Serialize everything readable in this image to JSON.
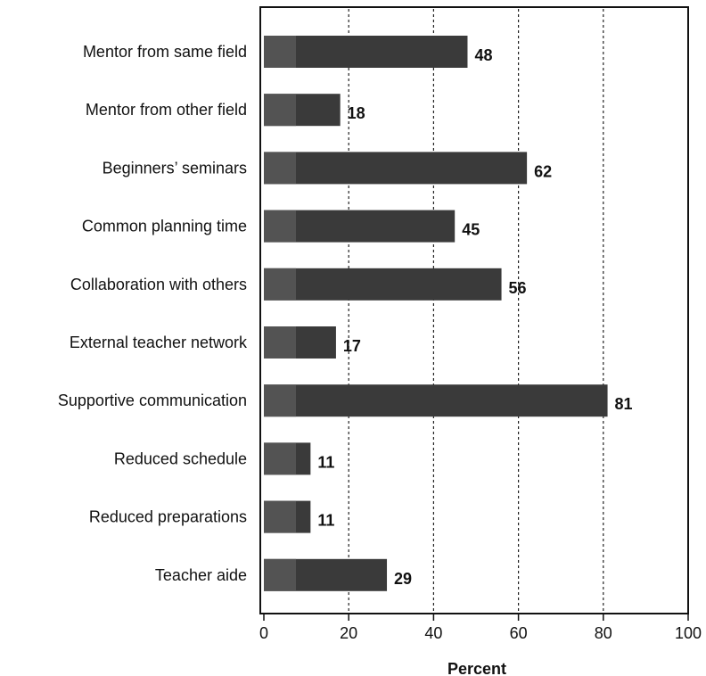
{
  "chart_data": {
    "type": "bar",
    "orientation": "horizontal",
    "categories": [
      "Mentor from same field",
      "Mentor from other field",
      "Beginners’ seminars",
      "Common planning time",
      "Collaboration with others",
      "External teacher network",
      "Supportive communication",
      "Reduced schedule",
      "Reduced preparations",
      "Teacher aide"
    ],
    "values": [
      48,
      18,
      62,
      45,
      56,
      17,
      81,
      11,
      11,
      29
    ],
    "xlabel": "Percent",
    "ylabel": "",
    "xlim": [
      0,
      100
    ],
    "xticks": [
      0,
      20,
      40,
      60,
      80,
      100
    ],
    "xtick_labels": [
      "0",
      "20",
      "40",
      "60",
      "80",
      "100"
    ],
    "grid": "vertical dashed at 20, 40, 60, 80",
    "bar_color": "#3a3a3a",
    "bar_left_shade": "#585858"
  }
}
